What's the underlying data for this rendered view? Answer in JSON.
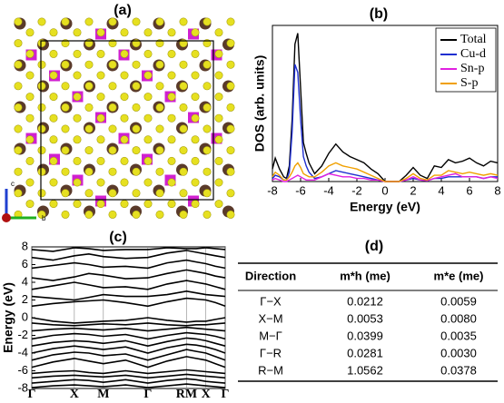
{
  "panel_labels": {
    "a": "(a)",
    "b": "(b)",
    "c": "(c)",
    "d": "(d)"
  },
  "structure_axes": {
    "c": "c",
    "b": "b"
  },
  "chart_data": [
    {
      "type": "line",
      "title": "(b)",
      "y_label": "DOS (arb. units)",
      "x_label": "Energy (eV)",
      "x": [
        -8,
        -7.8,
        -7.5,
        -7.2,
        -7,
        -6.8,
        -6.6,
        -6.4,
        -6.2,
        -6,
        -5.8,
        -5.6,
        -5.4,
        -5,
        -4.5,
        -4,
        -3.5,
        -3,
        -2.5,
        -2,
        -1.5,
        -1,
        -0.5,
        0,
        0.5,
        1,
        1.5,
        2,
        2.5,
        3,
        3.5,
        4,
        4.5,
        5,
        5.5,
        6,
        6.5,
        7,
        7.5,
        8
      ],
      "xlim": [
        -8,
        8
      ],
      "xticks": [
        -8,
        -6,
        -4,
        -2,
        0,
        2,
        4,
        6,
        8
      ],
      "ylim": [
        0,
        10
      ],
      "legend": "upper right",
      "series": [
        {
          "name": "Total",
          "color": "#000000",
          "values": [
            0.8,
            1.5,
            0.8,
            0.3,
            0.2,
            1.0,
            4.0,
            8.8,
            9.5,
            6.0,
            2.5,
            1.8,
            1.2,
            0.5,
            1.0,
            1.8,
            2.4,
            1.9,
            1.6,
            1.4,
            1.2,
            0.8,
            0.5,
            0,
            0,
            0,
            0.4,
            0.9,
            0.4,
            0.2,
            1.0,
            0.9,
            1.4,
            1.2,
            1.3,
            1.5,
            1.2,
            1.0,
            1.3,
            1.2
          ]
        },
        {
          "name": "Cu-d",
          "color": "#1f2fd0",
          "values": [
            0.2,
            0.4,
            0.3,
            0.1,
            0.1,
            0.6,
            3.2,
            7.5,
            7.0,
            4.0,
            1.6,
            1.0,
            0.6,
            0.2,
            0.3,
            0.5,
            0.7,
            0.6,
            0.5,
            0.4,
            0.3,
            0.2,
            0.1,
            0,
            0,
            0,
            0.1,
            0.2,
            0.1,
            0.05,
            0.2,
            0.2,
            0.3,
            0.3,
            0.3,
            0.3,
            0.3,
            0.2,
            0.3,
            0.3
          ]
        },
        {
          "name": "Sn-p",
          "color": "#e020e0",
          "values": [
            0.1,
            0.2,
            0.1,
            0,
            0,
            0.1,
            0.2,
            0.3,
            0.4,
            0.3,
            0.2,
            0.1,
            0.1,
            0.1,
            0.3,
            0.5,
            0.4,
            0.3,
            0.3,
            0.2,
            0.2,
            0.1,
            0.1,
            0,
            0,
            0,
            0.1,
            0.3,
            0.1,
            0.05,
            0.2,
            0.3,
            0.4,
            0.5,
            0.3,
            0.3,
            0.3,
            0.2,
            0.3,
            0.2
          ]
        },
        {
          "name": "S-p",
          "color": "#f0a000",
          "values": [
            0.3,
            0.6,
            0.4,
            0.1,
            0.1,
            0.3,
            0.6,
            1.0,
            1.2,
            0.9,
            0.5,
            0.4,
            0.3,
            0.3,
            0.6,
            1.0,
            1.2,
            1.0,
            0.9,
            0.8,
            0.6,
            0.4,
            0.2,
            0,
            0,
            0,
            0.2,
            0.5,
            0.2,
            0.1,
            0.4,
            0.4,
            0.7,
            0.6,
            0.5,
            0.6,
            0.5,
            0.4,
            0.5,
            0.4
          ]
        }
      ]
    },
    {
      "type": "bands",
      "title": "(c)",
      "y_label": "Energy (eV)",
      "color": "#000000",
      "x": [
        0,
        0.11,
        0.22,
        0.295,
        0.37,
        0.485,
        0.6,
        0.7,
        0.8,
        0.85,
        0.9,
        0.95,
        1.0
      ],
      "xlim": [
        0,
        1
      ],
      "xticks": [
        {
          "value": 0,
          "label": "Γ"
        },
        {
          "value": 0.22,
          "label": "X"
        },
        {
          "value": 0.37,
          "label": "M"
        },
        {
          "value": 0.6,
          "label": "Γ"
        },
        {
          "value": 0.8,
          "label": "RM"
        },
        {
          "value": 0.9,
          "label": "X"
        },
        {
          "value": 1,
          "label": "Γ"
        }
      ],
      "ylim": [
        -8,
        8
      ],
      "yticks": [
        -8,
        -6,
        -4,
        -2,
        0,
        2,
        4,
        6,
        8
      ],
      "series": [
        {
          "values": [
            -7.9,
            -7.7,
            -7.6,
            -7.7,
            -7.8,
            -7.6,
            -7.9,
            -7.7,
            -7.5,
            -7.6,
            -7.7,
            -7.8,
            -7.9
          ]
        },
        {
          "values": [
            -7.4,
            -7.2,
            -7.0,
            -7.1,
            -7.3,
            -7.0,
            -7.4,
            -7.1,
            -6.9,
            -7.0,
            -7.2,
            -7.3,
            -7.4
          ]
        },
        {
          "values": [
            -6.8,
            -6.6,
            -6.5,
            -6.6,
            -6.7,
            -6.5,
            -6.8,
            -6.6,
            -6.4,
            -6.5,
            -6.6,
            -6.7,
            -6.8
          ]
        },
        {
          "values": [
            -6.3,
            -6.1,
            -6.0,
            -6.2,
            -6.3,
            -6.0,
            -6.3,
            -6.1,
            -5.9,
            -6.0,
            -6.1,
            -6.2,
            -6.3
          ]
        },
        {
          "values": [
            -5.6,
            -5.0,
            -4.6,
            -4.9,
            -5.2,
            -4.8,
            -5.6,
            -4.9,
            -4.4,
            -4.6,
            -4.8,
            -5.2,
            -5.6
          ]
        },
        {
          "values": [
            -4.8,
            -4.2,
            -3.9,
            -4.0,
            -4.3,
            -4.1,
            -4.8,
            -4.2,
            -3.6,
            -3.8,
            -4.0,
            -4.4,
            -4.8
          ]
        },
        {
          "values": [
            -4.0,
            -3.5,
            -3.2,
            -3.4,
            -3.6,
            -3.3,
            -4.0,
            -3.4,
            -3.0,
            -3.1,
            -3.3,
            -3.6,
            -4.0
          ]
        },
        {
          "values": [
            -3.2,
            -2.8,
            -2.6,
            -2.7,
            -2.9,
            -2.6,
            -3.2,
            -2.7,
            -2.3,
            -2.4,
            -2.6,
            -2.9,
            -3.2
          ]
        },
        {
          "values": [
            -2.4,
            -2.0,
            -1.8,
            -1.9,
            -2.1,
            -1.9,
            -2.4,
            -2.0,
            -1.7,
            -1.8,
            -1.9,
            -2.1,
            -2.4
          ]
        },
        {
          "values": [
            -1.5,
            -1.3,
            -1.2,
            -1.3,
            -1.4,
            -1.2,
            -1.5,
            -1.3,
            -1.1,
            -1.2,
            -1.3,
            -1.4,
            -1.5
          ]
        },
        {
          "values": [
            -0.6,
            -0.8,
            -0.9,
            -0.8,
            -0.7,
            -0.8,
            -0.6,
            -0.8,
            -0.9,
            -0.8,
            -0.8,
            -0.7,
            -0.6
          ]
        },
        {
          "values": [
            0,
            -0.4,
            -0.6,
            -0.5,
            -0.4,
            -0.3,
            0,
            -0.3,
            -0.5,
            -0.4,
            -0.4,
            -0.2,
            0
          ]
        },
        {
          "values": [
            1.3,
            1.6,
            1.8,
            1.9,
            2.0,
            1.7,
            1.3,
            1.8,
            2.2,
            2.1,
            2.0,
            1.7,
            1.3
          ]
        },
        {
          "values": [
            2.4,
            2.2,
            2.0,
            2.3,
            2.6,
            2.4,
            2.4,
            2.6,
            3.0,
            2.8,
            2.6,
            2.5,
            2.4
          ]
        },
        {
          "values": [
            3.2,
            3.6,
            4.0,
            3.7,
            3.4,
            3.5,
            3.2,
            3.8,
            4.2,
            4.0,
            3.8,
            3.5,
            3.2
          ]
        },
        {
          "values": [
            4.5,
            4.2,
            4.6,
            5.0,
            4.8,
            4.4,
            4.5,
            5.0,
            5.4,
            5.2,
            5.0,
            4.7,
            4.5
          ]
        },
        {
          "values": [
            5.6,
            5.9,
            6.2,
            6.0,
            5.7,
            5.8,
            5.6,
            6.2,
            6.5,
            6.3,
            6.1,
            5.8,
            5.6
          ]
        },
        {
          "values": [
            6.8,
            6.5,
            7.0,
            7.2,
            6.9,
            6.7,
            6.8,
            7.3,
            7.6,
            7.4,
            7.2,
            7.0,
            6.8
          ]
        },
        {
          "values": [
            7.7,
            7.5,
            7.9,
            7.8,
            7.6,
            7.7,
            7.7,
            7.9,
            7.8,
            7.8,
            7.9,
            7.8,
            7.7
          ]
        }
      ]
    }
  ],
  "table": {
    "header": [
      "Direction",
      "m*h (me)",
      "m*e (me)"
    ],
    "rows": [
      [
        "Γ−X",
        "0.0212",
        "0.0059"
      ],
      [
        "X−M",
        "0.0053",
        "0.0080"
      ],
      [
        "M−Γ",
        "0.0399",
        "0.0035"
      ],
      [
        "Γ−R",
        "0.0281",
        "0.0030"
      ],
      [
        "R−M",
        "1.0562",
        "0.0378"
      ]
    ]
  }
}
